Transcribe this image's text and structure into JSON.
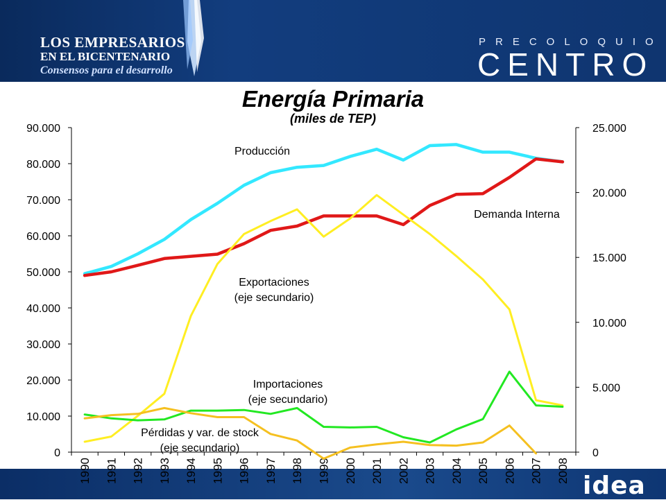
{
  "header": {
    "logo_line1": "LOS EMPRESARIOS",
    "logo_line2": "EN EL BICENTENARIO",
    "logo_line3": "Consensos para el desarrollo",
    "brand_top": "PRECOLOQUIO",
    "brand_main": "CENTRO"
  },
  "footer": {
    "logo": "idea"
  },
  "colors": {
    "produccion": "#33e8ff",
    "demanda": "#e01818",
    "exportaciones": "#ffee22",
    "importaciones": "#22e822",
    "perdidas": "#f5c020"
  },
  "chart_data": {
    "type": "line",
    "title": "Energía Primaria",
    "subtitle": "(miles de TEP)",
    "x": [
      "1990",
      "1991",
      "1992",
      "1993",
      "1994",
      "1995",
      "1996",
      "1997",
      "1998",
      "1999",
      "2000",
      "2001",
      "2002",
      "2003",
      "2004",
      "2005",
      "2006",
      "2007",
      "2008"
    ],
    "y_left": {
      "min": 0,
      "max": 90000,
      "ticks": [
        "0",
        "10.000",
        "20.000",
        "30.000",
        "40.000",
        "50.000",
        "60.000",
        "70.000",
        "80.000",
        "90.000"
      ]
    },
    "y_right": {
      "min": 0,
      "max": 25000,
      "ticks": [
        "0",
        "5.000",
        "10.000",
        "15.000",
        "20.000",
        "25.000"
      ]
    },
    "grid": false,
    "series": [
      {
        "name": "Producción",
        "axis": "left",
        "color_key": "produccion",
        "values": [
          49500,
          51500,
          55000,
          59000,
          64500,
          69000,
          74000,
          77500,
          79000,
          79500,
          82000,
          84000,
          81000,
          85000,
          85300,
          83200,
          83200,
          81500,
          80500
        ]
      },
      {
        "name": "Demanda Interna",
        "axis": "left",
        "color_key": "demanda",
        "values": [
          49000,
          50000,
          51800,
          53700,
          54300,
          54900,
          57800,
          61500,
          62700,
          65500,
          65500,
          65500,
          63100,
          68400,
          71500,
          71700,
          76200,
          81300,
          80500
        ]
      },
      {
        "name": "Exportaciones\n(eje secundario)",
        "axis": "right",
        "color_key": "exportaciones",
        "values": [
          800,
          1200,
          2800,
          4500,
          10500,
          14500,
          16800,
          17800,
          18700,
          16600,
          18000,
          19800,
          18300,
          16800,
          15100,
          13300,
          11000,
          4000,
          3600
        ]
      },
      {
        "name": "Importaciones\n(eje secundario)",
        "axis": "right",
        "color_key": "importaciones",
        "values": [
          2900,
          2600,
          2450,
          2520,
          3200,
          3200,
          3250,
          2950,
          3400,
          1950,
          1900,
          1950,
          1150,
          750,
          1750,
          2550,
          6200,
          3600,
          3500
        ]
      },
      {
        "name": "Pérdidas y var. de stock\n(eje secundario)",
        "axis": "right",
        "color_key": "perdidas",
        "values": [
          2600,
          2850,
          2950,
          3400,
          3000,
          2700,
          2700,
          1400,
          900,
          -500,
          350,
          600,
          800,
          550,
          500,
          750,
          2050,
          -100,
          null
        ]
      }
    ],
    "annotations": {
      "produccion": "Producción",
      "demanda": "Demanda Interna",
      "exportaciones_l1": "Exportaciones",
      "exportaciones_l2": "(eje secundario)",
      "importaciones_l1": "Importaciones",
      "importaciones_l2": "(eje secundario)",
      "perdidas_l1": "Pérdidas y var. de stock",
      "perdidas_l2": "(eje secundario)"
    }
  }
}
